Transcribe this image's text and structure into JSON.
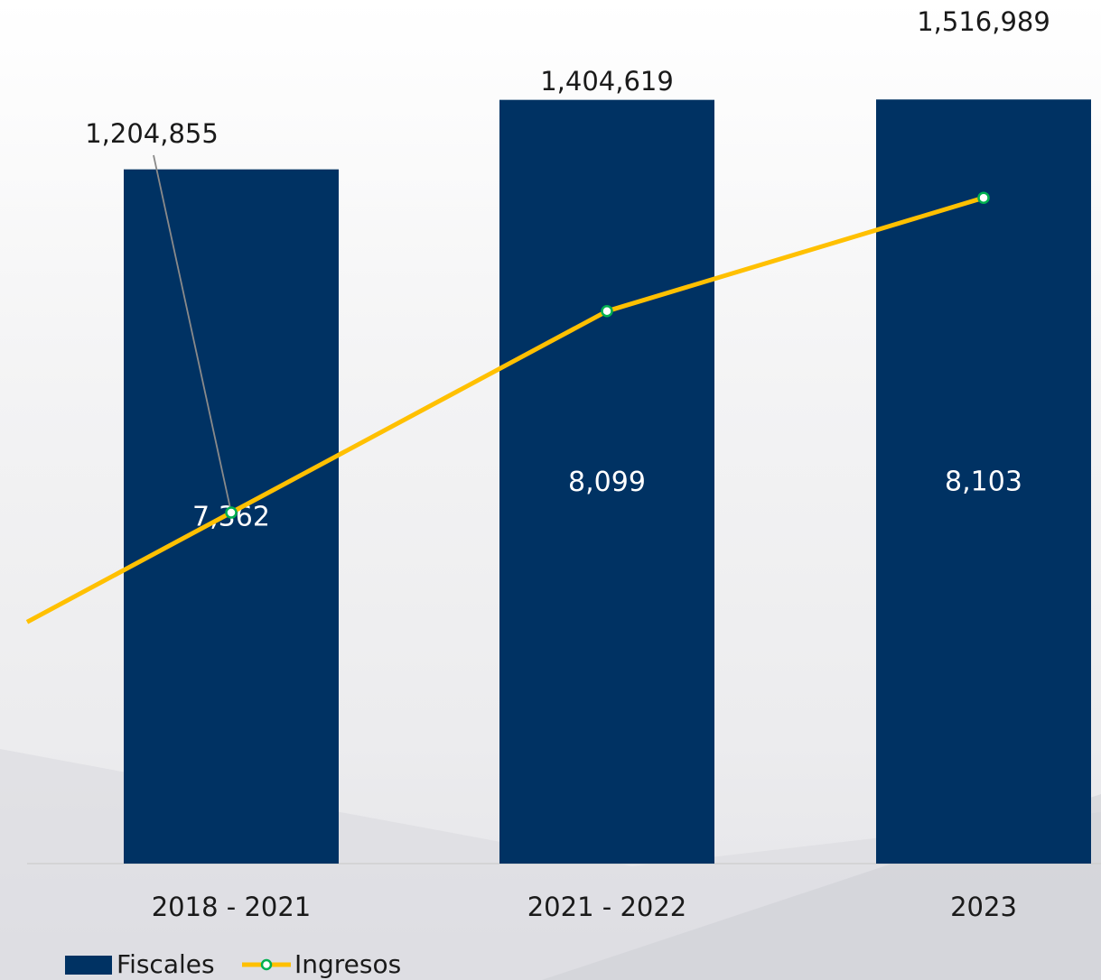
{
  "chart_data": {
    "type": "bar",
    "categories": [
      "2018 - 2021",
      "2021 - 2022",
      "2023"
    ],
    "series": [
      {
        "name": "Fiscales",
        "type": "bar",
        "values": [
          7362,
          8099,
          8103
        ],
        "labels": [
          "7,362",
          "8,099",
          "8,103"
        ]
      },
      {
        "name": "Ingresos",
        "type": "line",
        "values": [
          1204855,
          1404619,
          1516989
        ],
        "labels": [
          "1,204,855",
          "1,404,619",
          "1,516,989"
        ]
      }
    ],
    "title": "",
    "xlabel": "",
    "ylabel": "",
    "legend_position": "bottom-left",
    "grid": false,
    "colors": {
      "bar": "#003263",
      "line": "#FFC000",
      "marker_edge": "#00B050",
      "marker_fill": "#ffffff",
      "leader": "#8a8a8a"
    }
  }
}
